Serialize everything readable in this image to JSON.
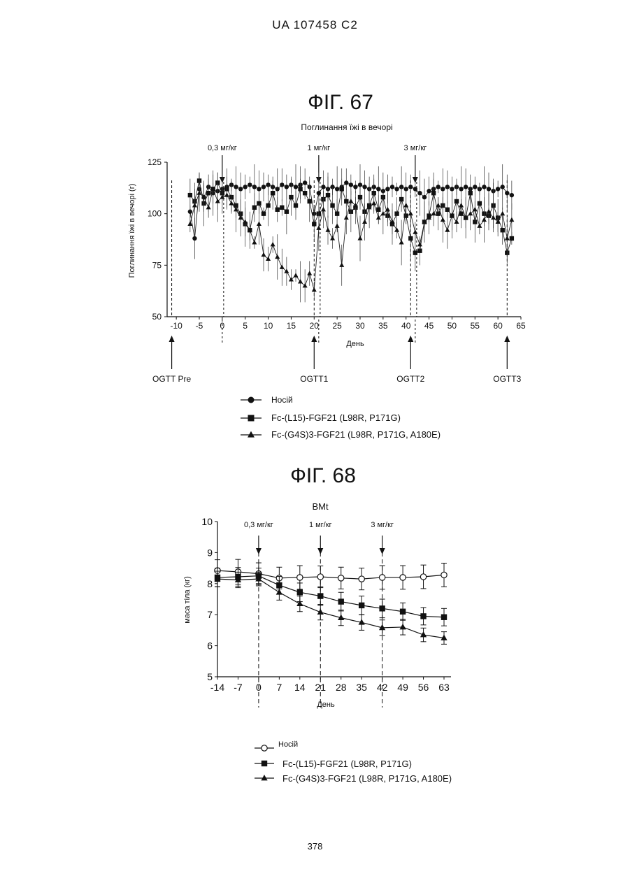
{
  "header": {
    "text": "UA   107458   C2"
  },
  "page_number": "378",
  "fig67": {
    "title": "ФІГ. 67",
    "chart_data": {
      "type": "line",
      "title": "Поглинання їжі в вечорі",
      "xlabel": "День",
      "ylabel": "Поглинання їжі в вечорі (г)",
      "xlim": [
        -12,
        65
      ],
      "ylim": [
        50,
        125
      ],
      "xticks": [
        -10,
        -5,
        0,
        5,
        10,
        15,
        20,
        25,
        30,
        35,
        40,
        45,
        50,
        55,
        60,
        65
      ],
      "yticks": [
        50,
        75,
        100,
        125
      ],
      "dose_markers": [
        {
          "label": "0,3 мг/кг",
          "x": 0
        },
        {
          "label": "1 мг/кг",
          "x": 21
        },
        {
          "label": "3 мг/кг",
          "x": 42
        }
      ],
      "ogtt_markers": [
        {
          "label": "OGTT Pre",
          "x": -11
        },
        {
          "label": "OGTT1",
          "x": 20
        },
        {
          "label": "OGTT2",
          "x": 41
        },
        {
          "label": "OGTT3",
          "x": 62
        }
      ],
      "x": [
        -7,
        -6,
        -5,
        -4,
        -3,
        -2,
        -1,
        0,
        1,
        2,
        3,
        4,
        5,
        6,
        7,
        8,
        9,
        10,
        11,
        12,
        13,
        14,
        15,
        16,
        17,
        18,
        19,
        20,
        21,
        22,
        23,
        24,
        25,
        26,
        27,
        28,
        29,
        30,
        31,
        32,
        33,
        34,
        35,
        36,
        37,
        38,
        39,
        40,
        41,
        42,
        43,
        44,
        45,
        46,
        47,
        48,
        49,
        50,
        51,
        52,
        53,
        54,
        55,
        56,
        57,
        58,
        59,
        60,
        61,
        62,
        63
      ],
      "series": [
        {
          "name": "Носій",
          "marker": "circle",
          "values": [
            101,
            88,
            112,
            108,
            113,
            110,
            111,
            112,
            113,
            114,
            113,
            112,
            113,
            114,
            113,
            112,
            113,
            114,
            113,
            112,
            114,
            113,
            114,
            113,
            114,
            115,
            113,
            100,
            110,
            113,
            112,
            113,
            112,
            113,
            115,
            114,
            113,
            114,
            113,
            112,
            113,
            112,
            111,
            112,
            113,
            112,
            113,
            112,
            113,
            112,
            110,
            108,
            111,
            112,
            113,
            112,
            113,
            112,
            113,
            112,
            113,
            112,
            113,
            112,
            113,
            112,
            111,
            112,
            113,
            110,
            109
          ]
        },
        {
          "name": "Fc-(L15)-FGF21 (L98R, P171G)",
          "marker": "square",
          "values": [
            109,
            106,
            116,
            105,
            110,
            112,
            115,
            110,
            112,
            108,
            104,
            100,
            95,
            92,
            103,
            105,
            100,
            104,
            110,
            102,
            103,
            101,
            108,
            104,
            112,
            110,
            106,
            95,
            100,
            107,
            109,
            104,
            100,
            112,
            106,
            101,
            103,
            108,
            101,
            104,
            110,
            102,
            108,
            99,
            95,
            100,
            107,
            99,
            88,
            81,
            82,
            96,
            99,
            110,
            100,
            104,
            102,
            99,
            106,
            100,
            98,
            110,
            96,
            105,
            100,
            99,
            104,
            98,
            92,
            81,
            88
          ]
        },
        {
          "name": "Fc-(G4S)3-FGF21 (L98R, P171G, A180E)",
          "marker": "triangle",
          "values": [
            95,
            104,
            110,
            108,
            103,
            112,
            106,
            108,
            109,
            105,
            102,
            98,
            96,
            92,
            86,
            95,
            80,
            78,
            85,
            79,
            74,
            72,
            68,
            70,
            67,
            65,
            71,
            63,
            93,
            102,
            92,
            88,
            94,
            75,
            98,
            106,
            104,
            88,
            96,
            103,
            105,
            98,
            100,
            102,
            96,
            92,
            86,
            104,
            100,
            91,
            85,
            96,
            98,
            100,
            104,
            97,
            92,
            99,
            96,
            104,
            98,
            100,
            102,
            94,
            97,
            101,
            98,
            96,
            100,
            88,
            97
          ]
        }
      ]
    }
  },
  "fig67_legend": [
    {
      "label": "Носій",
      "marker": "circle"
    },
    {
      "label": "Fc-(L15)-FGF21 (L98R, P171G)",
      "marker": "square"
    },
    {
      "label": "Fc-(G4S)3-FGF21 (L98R, P171G, A180E)",
      "marker": "triangle"
    }
  ],
  "fig68": {
    "title": "ФІГ. 68",
    "chart_data": {
      "type": "line",
      "title": "BMt",
      "xlabel": "День",
      "ylabel": "маса тіла (кг)",
      "xlim": [
        -14,
        63
      ],
      "ylim": [
        5,
        10
      ],
      "xticks": [
        -14,
        -7,
        0,
        7,
        14,
        21,
        28,
        35,
        42,
        49,
        56,
        63
      ],
      "xtick_labels": [
        "-14",
        "-7",
        "0",
        "7",
        "14",
        "21",
        "28",
        "35",
        "42",
        "49",
        "56",
        "63"
      ],
      "yticks": [
        5,
        6,
        7,
        8,
        9,
        10
      ],
      "dose_markers": [
        {
          "label": "0,3 мг/кг",
          "x": 0
        },
        {
          "label": "1 мг/кг",
          "x": 21
        },
        {
          "label": "3 мг/кг",
          "x": 42
        }
      ],
      "x": [
        -14,
        -7,
        0,
        7,
        14,
        21,
        28,
        35,
        42,
        49,
        56,
        63
      ],
      "series": [
        {
          "name": "Носій",
          "marker": "open-circle",
          "values": [
            8.42,
            8.38,
            8.32,
            8.18,
            8.2,
            8.22,
            8.18,
            8.15,
            8.2,
            8.2,
            8.22,
            8.28
          ],
          "errors": [
            0.35,
            0.4,
            0.35,
            0.35,
            0.38,
            0.35,
            0.35,
            0.35,
            0.38,
            0.38,
            0.38,
            0.38
          ]
        },
        {
          "name": "Fc-(L15)-FGF21 (L98R, P171G)",
          "marker": "square",
          "values": [
            8.2,
            8.22,
            8.25,
            7.95,
            7.72,
            7.6,
            7.42,
            7.3,
            7.2,
            7.1,
            6.95,
            6.92
          ],
          "errors": [
            0.3,
            0.3,
            0.25,
            0.28,
            0.3,
            0.3,
            0.3,
            0.3,
            0.3,
            0.28,
            0.28,
            0.28
          ]
        },
        {
          "name": "Fc-(G4S)3-FGF21 (L98R, P171G, A180E)",
          "marker": "triangle",
          "values": [
            8.15,
            8.12,
            8.15,
            7.72,
            7.35,
            7.08,
            6.9,
            6.75,
            6.58,
            6.6,
            6.35,
            6.25
          ],
          "errors": [
            0.25,
            0.25,
            0.22,
            0.25,
            0.25,
            0.25,
            0.25,
            0.25,
            0.25,
            0.25,
            0.22,
            0.2
          ]
        }
      ]
    }
  },
  "fig68_legend": [
    {
      "label": "Носій",
      "marker": "open-circle"
    },
    {
      "label": "Fc-(L15)-FGF21 (L98R, P171G)",
      "marker": "square"
    },
    {
      "label": "Fc-(G4S)3-FGF21 (L98R, P171G, A180E)",
      "marker": "triangle"
    }
  ]
}
